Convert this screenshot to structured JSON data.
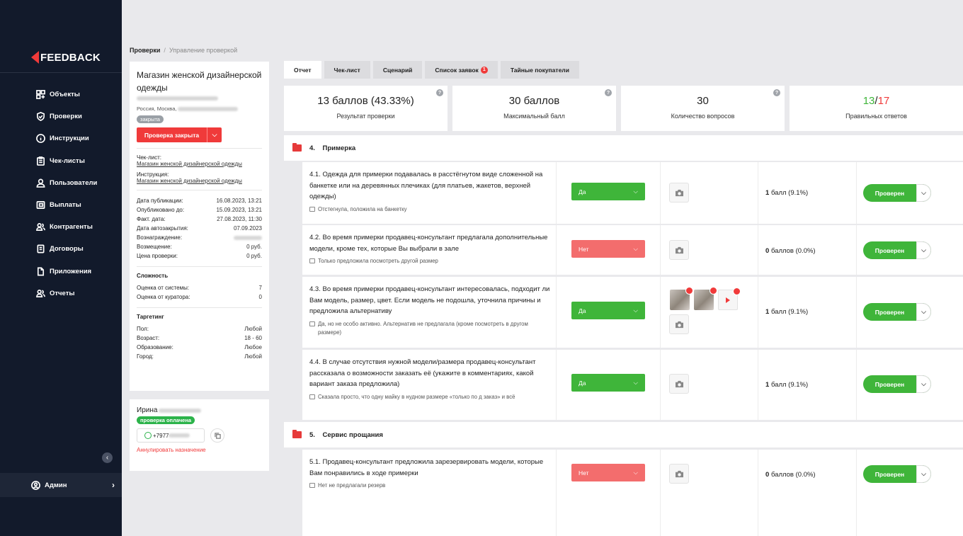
{
  "app": {
    "logo_text": "FEEDBACK"
  },
  "sidebar": {
    "items": [
      {
        "label": "Объекты",
        "icon": "grid-icon"
      },
      {
        "label": "Проверки",
        "icon": "shield-icon"
      },
      {
        "label": "Инструкции",
        "icon": "info-icon"
      },
      {
        "label": "Чек-листы",
        "icon": "clipboard-icon"
      },
      {
        "label": "Пользователи",
        "icon": "user-icon"
      },
      {
        "label": "Выплаты",
        "icon": "wallet-icon"
      },
      {
        "label": "Контрагенты",
        "icon": "users-icon"
      },
      {
        "label": "Договоры",
        "icon": "document-icon"
      },
      {
        "label": "Приложения",
        "icon": "file-icon"
      },
      {
        "label": "Отчеты",
        "icon": "users-icon"
      }
    ],
    "collapse_glyph": "‹",
    "user_label": "Админ"
  },
  "breadcrumb": {
    "root": "Проверки",
    "current": "Управление проверкой"
  },
  "info": {
    "title": "Магазин женской дизайнерской одежды",
    "address": "Россия, Москва,",
    "status_badge": "закрыта",
    "status_button": "Проверка закрыта",
    "checklist_label": "Чек-лист:",
    "checklist_link": "Магазин женской дизайнерской одежды",
    "instruction_label": "Инструкция:",
    "instruction_link": "Магазин женской дизайнерской одежды",
    "details": [
      {
        "k": "Дата публикации:",
        "v": "16.08.2023, 13:21"
      },
      {
        "k": "Опубликовано до:",
        "v": "15.09.2023, 13:21"
      },
      {
        "k": "Факт. дата:",
        "v": "27.08.2023, 11:30"
      },
      {
        "k": "Дата автозакрытия:",
        "v": "07.09.2023"
      },
      {
        "k": "Вознаграждение:",
        "v": ""
      },
      {
        "k": "Возмещение:",
        "v": "0 руб."
      },
      {
        "k": "Цена проверки:",
        "v": "0 руб."
      }
    ],
    "complexity_title": "Сложность",
    "complexity": [
      {
        "k": "Оценка от системы:",
        "v": "7"
      },
      {
        "k": "Оценка от куратора:",
        "v": "0"
      }
    ],
    "targeting_title": "Таргетинг",
    "targeting": [
      {
        "k": "Пол:",
        "v": "Любой"
      },
      {
        "k": "Возраст:",
        "v": "18 - 60"
      },
      {
        "k": "Образование:",
        "v": "Любое"
      },
      {
        "k": "Город:",
        "v": "Любой"
      }
    ]
  },
  "assignee": {
    "name": "Ирина",
    "paid_badge": "проверка оплачена",
    "phone": "+7977",
    "cancel": "Аннулировать назначение"
  },
  "tabs": [
    {
      "label": "Отчет",
      "active": true
    },
    {
      "label": "Чек-лист"
    },
    {
      "label": "Сценарий"
    },
    {
      "label": "Список заявок",
      "badge": "1"
    },
    {
      "label": "Тайные покупатели"
    }
  ],
  "stats": {
    "result_value": "13 баллов (43.33%)",
    "result_label": "Результат проверки",
    "max_value": "30 баллов",
    "max_label": "Максимальный балл",
    "questions_value": "30",
    "questions_label": "Количество вопросов",
    "correct_value": "13",
    "correct_total": "17",
    "correct_label": "Правильных ответов",
    "correct_color": "#3fb53a",
    "total_color": "#f03a3a"
  },
  "sections": [
    {
      "number": "4.",
      "title": "Примерка"
    },
    {
      "number": "5.",
      "title": "Сервис прощания"
    }
  ],
  "questions": [
    {
      "text": "4.1. Одежда для примерки подавалась в расстёгнутом виде сложенной на банкетке или на деревянных плечиках (для платьев, жакетов, верхней одежды)",
      "comment": "Отстегнула, положила на банкетку",
      "answer": "Да",
      "score_bold": "1",
      "score_rest": "балл (9.1%)",
      "status": "Проверен"
    },
    {
      "text": "4.2. Во время примерки продавец-консультант предлагала дополнительные модели, кроме тех, которые Вы выбрали в зале",
      "comment": "Только предложила посмотреть другой размер",
      "answer": "Нет",
      "score_bold": "0",
      "score_rest": "баллов (0.0%)",
      "status": "Проверен"
    },
    {
      "text": "4.3. Во время примерки продавец-консультант интересовалась, подходит ли Вам модель, размер, цвет. Если модель не подошла, уточнила причины и предложила альтернативу",
      "comment": "Да, но не особо активно. Альтернатив не предлагала (кроме посмотреть в другом размере)",
      "answer": "Да",
      "score_bold": "1",
      "score_rest": "балл (9.1%)",
      "status": "Проверен"
    },
    {
      "text": "4.4. В случае отсутствия нужной модели/размера продавец-консультант рассказала о возможности заказать её (укажите в комментариях, какой вариант заказа предложила)",
      "comment": "Сказала просто, что одну майку в нудном размере «только по д заказ» и всё",
      "answer": "Да",
      "score_bold": "1",
      "score_rest": "балл (9.1%)",
      "status": "Проверен"
    },
    {
      "text": "5.1. Продавец-консультант предложила зарезервировать модели, которые Вам понравились в ходе примерки",
      "comment": "Нет не предлагали резерв",
      "answer": "Нет",
      "score_bold": "0",
      "score_rest": "баллов (0.0%)",
      "status": "Проверен"
    }
  ],
  "colors": {
    "sidebar_bg": "#121a2b",
    "accent_red": "#f03a3a",
    "accent_green": "#3fb53a",
    "no_red": "#f36d6d"
  }
}
